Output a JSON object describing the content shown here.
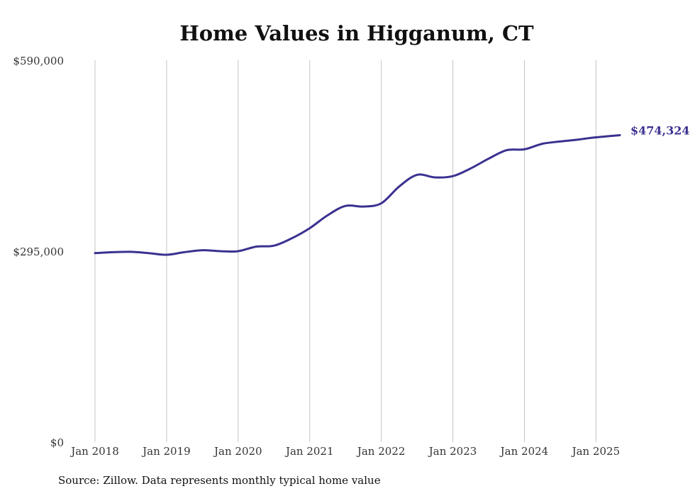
{
  "chart_data": {
    "type": "line",
    "title": "Home Values in Higganum, CT",
    "xlabel": "",
    "ylabel": "",
    "ylim": [
      0,
      590000
    ],
    "yticks": [
      {
        "value": 0,
        "label": "$0"
      },
      {
        "value": 295000,
        "label": "$295,000"
      },
      {
        "value": 590000,
        "label": "$590,000"
      }
    ],
    "xticks": [
      {
        "value": "2018-01",
        "label": "Jan 2018"
      },
      {
        "value": "2019-01",
        "label": "Jan 2019"
      },
      {
        "value": "2020-01",
        "label": "Jan 2020"
      },
      {
        "value": "2021-01",
        "label": "Jan 2021"
      },
      {
        "value": "2022-01",
        "label": "Jan 2022"
      },
      {
        "value": "2023-01",
        "label": "Jan 2023"
      },
      {
        "value": "2024-01",
        "label": "Jan 2024"
      },
      {
        "value": "2025-01",
        "label": "Jan 2025"
      }
    ],
    "xlim": [
      "2018-01",
      "2025-05"
    ],
    "grid": {
      "vertical": true,
      "horizontal": false
    },
    "series": [
      {
        "color": "#3a3190",
        "end_label": "$474,324",
        "points": [
          [
            "2018-01",
            292000
          ],
          [
            "2018-04",
            293500
          ],
          [
            "2018-07",
            294000
          ],
          [
            "2018-10",
            292000
          ],
          [
            "2019-01",
            289500
          ],
          [
            "2019-04",
            293500
          ],
          [
            "2019-07",
            296500
          ],
          [
            "2019-10",
            295000
          ],
          [
            "2020-01",
            295000
          ],
          [
            "2020-04",
            302000
          ],
          [
            "2020-07",
            303500
          ],
          [
            "2020-10",
            315000
          ],
          [
            "2021-01",
            330500
          ],
          [
            "2021-04",
            350500
          ],
          [
            "2021-07",
            365000
          ],
          [
            "2021-10",
            364000
          ],
          [
            "2022-01",
            369000
          ],
          [
            "2022-04",
            395000
          ],
          [
            "2022-07",
            413000
          ],
          [
            "2022-10",
            409000
          ],
          [
            "2023-01",
            411000
          ],
          [
            "2023-04",
            423000
          ],
          [
            "2023-07",
            438000
          ],
          [
            "2023-10",
            451000
          ],
          [
            "2024-01",
            452500
          ],
          [
            "2024-04",
            461000
          ],
          [
            "2024-07",
            464500
          ],
          [
            "2024-10",
            467500
          ],
          [
            "2025-01",
            471000
          ],
          [
            "2025-05",
            474324
          ]
        ]
      }
    ]
  },
  "source_note": "Source: Zillow. Data represents monthly typical home value"
}
